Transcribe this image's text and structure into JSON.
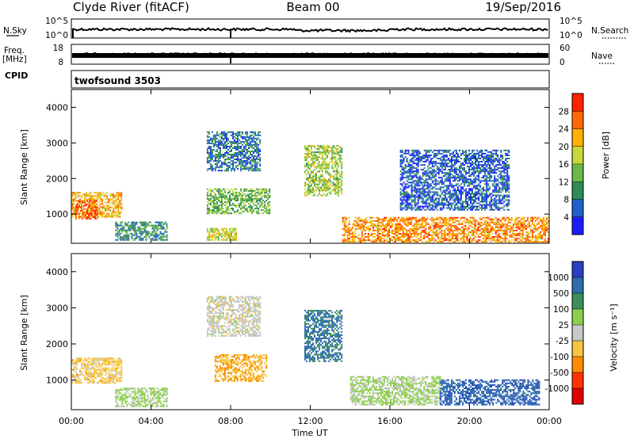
{
  "header": {
    "station": "Clyde River (fitACF)",
    "beam": "Beam 00",
    "date": "19/Sep/2016"
  },
  "status": {
    "nsky_label": "N.Sky",
    "nsky_ticks": [
      "10^5",
      "10^0"
    ],
    "nsearch_label": "N.Search",
    "nsearch_ticks": [
      "10^5",
      "10^0"
    ],
    "freq_label": "Freq.",
    "freq_unit": "[MHz]",
    "freq_ticks": [
      "18",
      "8"
    ],
    "nave_label": "Nave",
    "nave_ticks": [
      "60",
      "0"
    ],
    "cpid_label": "CPID",
    "cpid_value": "twofsound 3503"
  },
  "x_axis": {
    "label": "Time UT",
    "ticks": [
      "00:00",
      "04:00",
      "08:00",
      "12:00",
      "16:00",
      "20:00",
      "00:00"
    ]
  },
  "y_axis": {
    "label": "Slant Range [km]",
    "ticks": [
      "1000",
      "2000",
      "3000",
      "4000"
    ]
  },
  "colorbars": {
    "power": {
      "label": "Power [dB]",
      "ticks": [
        "4",
        "8",
        "12",
        "16",
        "20",
        "24",
        "28"
      ],
      "colors": [
        "#1a1aff",
        "#2060c8",
        "#2e8b57",
        "#6cb94a",
        "#c8d83a",
        "#ffb000",
        "#ff6a00",
        "#ff2200"
      ]
    },
    "velocity": {
      "label": "Velocity [m s⁻¹]",
      "ticks": [
        "1000",
        "500",
        "100",
        "25",
        "-25",
        "-100",
        "-500",
        "-1000"
      ],
      "colors": [
        "#2a3fbf",
        "#2e6cb0",
        "#3a8f5a",
        "#8ccf4a",
        "#c8c8c8",
        "#f5c542",
        "#ff8c00",
        "#ff3300",
        "#e00000"
      ]
    }
  },
  "chart_data": [
    {
      "type": "heatmap",
      "title": "Power",
      "xlabel": "Time UT",
      "ylabel": "Slant Range [km]",
      "xlim": [
        "00:00",
        "24:00"
      ],
      "ylim": [
        180,
        4500
      ],
      "zlabel": "Power [dB]",
      "zlim": [
        0,
        32
      ],
      "regions": [
        {
          "t": [
            0.0,
            2.5
          ],
          "range": [
            900,
            1600
          ],
          "value": 22
        },
        {
          "t": [
            0.2,
            1.3
          ],
          "range": [
            850,
            1350
          ],
          "value": 28
        },
        {
          "t": [
            2.2,
            4.8
          ],
          "range": [
            250,
            750
          ],
          "value": 10
        },
        {
          "t": [
            6.8,
            8.3
          ],
          "range": [
            250,
            600
          ],
          "value": 18
        },
        {
          "t": [
            6.8,
            10.0
          ],
          "range": [
            1000,
            1700
          ],
          "value": 14
        },
        {
          "t": [
            6.8,
            9.5
          ],
          "range": [
            2200,
            3300
          ],
          "value": 8
        },
        {
          "t": [
            11.7,
            13.6
          ],
          "range": [
            1500,
            2900
          ],
          "value": 16
        },
        {
          "t": [
            13.6,
            24.0
          ],
          "range": [
            200,
            900
          ],
          "value": 24
        },
        {
          "t": [
            16.5,
            22.0
          ],
          "range": [
            1100,
            2800
          ],
          "value": 6
        }
      ]
    },
    {
      "type": "heatmap",
      "title": "Velocity",
      "xlabel": "Time UT",
      "ylabel": "Slant Range [km]",
      "xlim": [
        "00:00",
        "24:00"
      ],
      "ylim": [
        180,
        4500
      ],
      "zlabel": "Velocity [m s⁻¹]",
      "zlim": [
        -1000,
        1000
      ],
      "regions": [
        {
          "t": [
            0.0,
            2.5
          ],
          "range": [
            900,
            1600
          ],
          "value": -200
        },
        {
          "t": [
            2.2,
            4.8
          ],
          "range": [
            250,
            750
          ],
          "value": 150
        },
        {
          "t": [
            7.2,
            9.8
          ],
          "range": [
            950,
            1700
          ],
          "value": -300
        },
        {
          "t": [
            6.8,
            9.5
          ],
          "range": [
            2200,
            3300
          ],
          "value": 0
        },
        {
          "t": [
            11.7,
            13.6
          ],
          "range": [
            1500,
            2900
          ],
          "value": 600
        },
        {
          "t": [
            14.0,
            18.5
          ],
          "range": [
            300,
            1100
          ],
          "value": 150
        },
        {
          "t": [
            18.5,
            23.5
          ],
          "range": [
            300,
            1000
          ],
          "value": 700
        }
      ]
    }
  ]
}
